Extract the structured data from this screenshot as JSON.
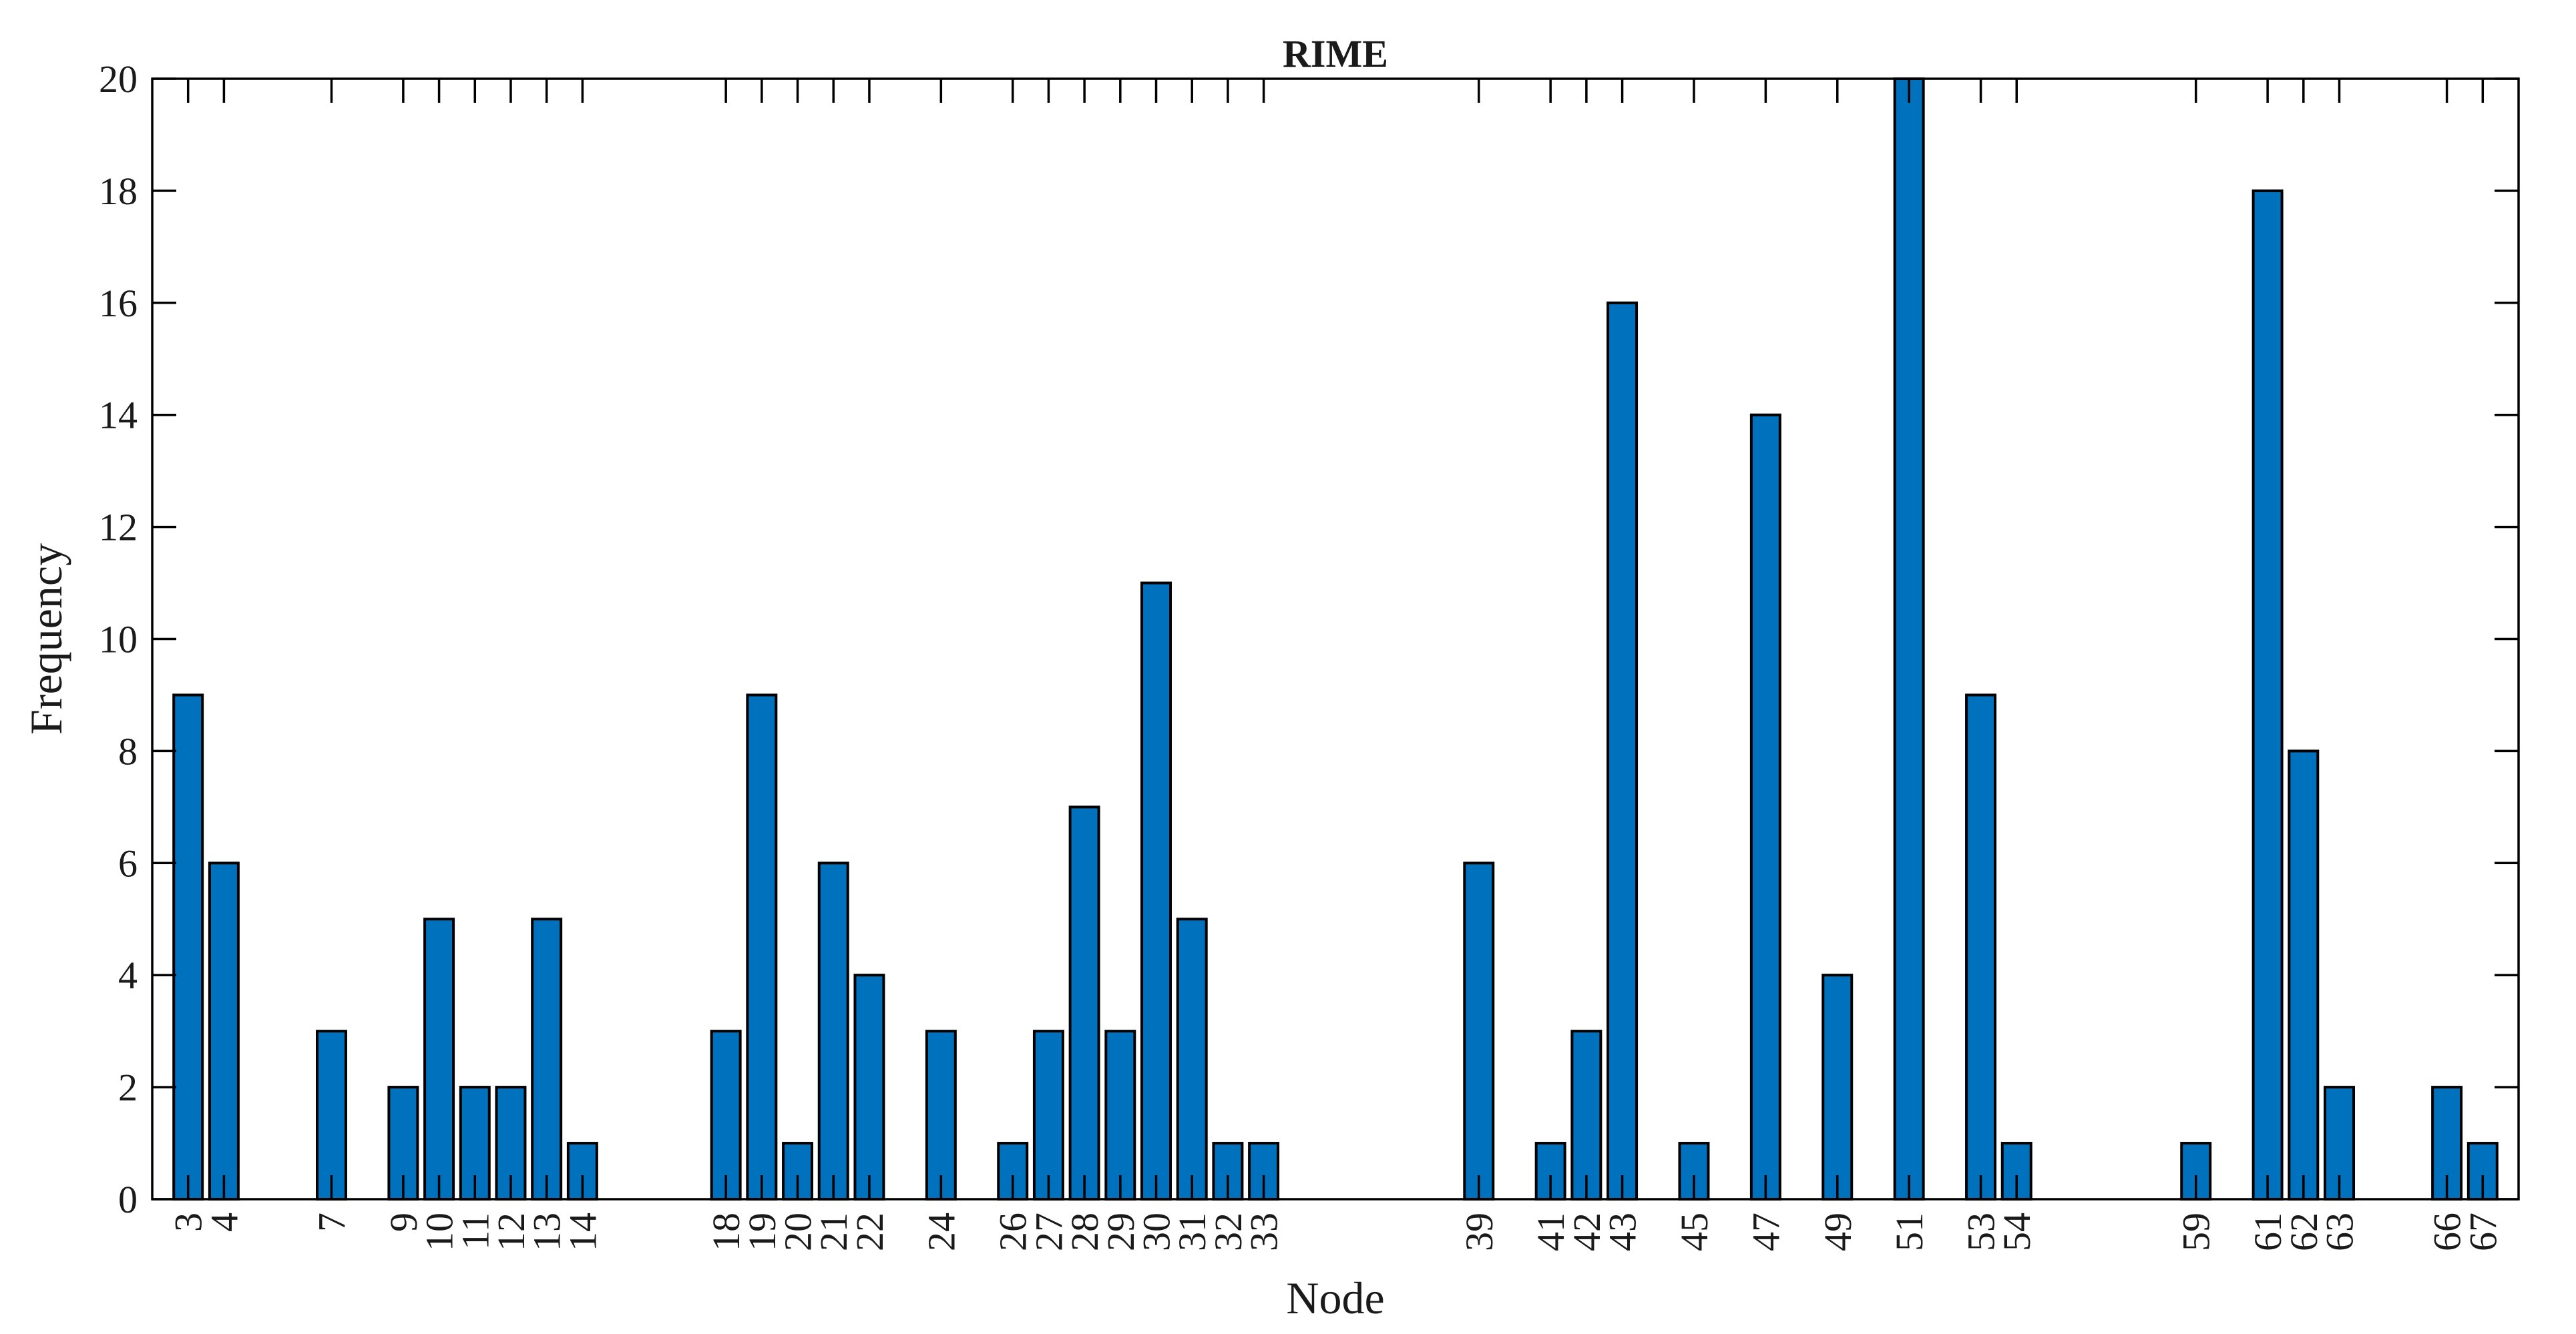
{
  "chart_data": {
    "type": "bar",
    "title": "RIME",
    "xlabel": "Node",
    "ylabel": "Frequency",
    "categories": [
      3,
      4,
      7,
      9,
      10,
      11,
      12,
      13,
      14,
      18,
      19,
      20,
      21,
      22,
      24,
      26,
      27,
      28,
      29,
      30,
      31,
      32,
      33,
      39,
      41,
      42,
      43,
      45,
      47,
      49,
      51,
      53,
      54,
      59,
      61,
      62,
      63,
      66,
      67
    ],
    "values": [
      9,
      6,
      3,
      2,
      5,
      2,
      2,
      5,
      1,
      3,
      9,
      1,
      6,
      4,
      3,
      1,
      3,
      7,
      3,
      11,
      5,
      1,
      1,
      6,
      1,
      3,
      16,
      1,
      14,
      4,
      20,
      9,
      1,
      1,
      18,
      8,
      2,
      2,
      1
    ],
    "xlim": [
      2,
      68
    ],
    "ylim": [
      0,
      20
    ],
    "yticks": [
      0,
      2,
      4,
      6,
      8,
      10,
      12,
      14,
      16,
      18,
      20
    ],
    "grid": false,
    "bar_color": "#0072BD",
    "edge_color": "#000000"
  }
}
